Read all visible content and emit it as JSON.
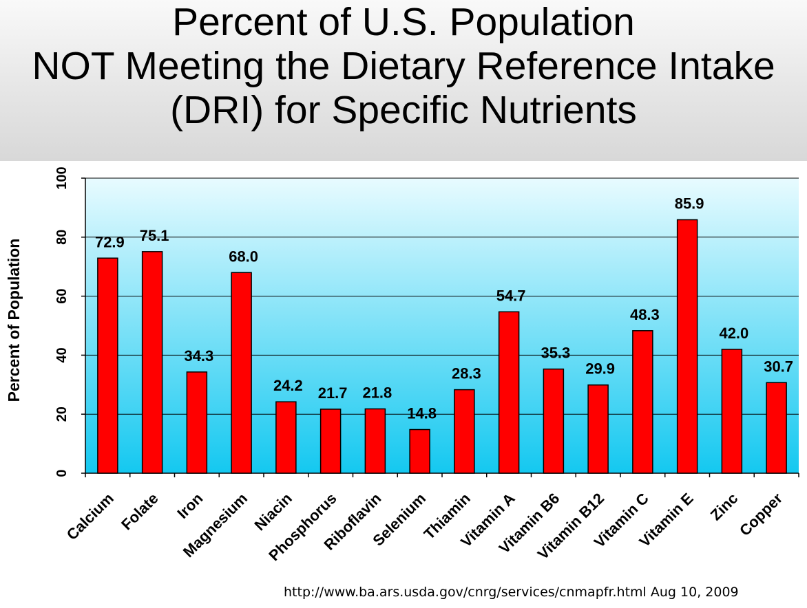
{
  "chart_data": {
    "type": "bar",
    "title": [
      "Percent of U.S. Population",
      "NOT Meeting the Dietary Reference Intake",
      "(DRI) for Specific Nutrients"
    ],
    "xlabel": "",
    "ylabel": "Percent of Population",
    "ylim": [
      0,
      100
    ],
    "yticks": [
      0,
      20,
      40,
      60,
      80,
      100
    ],
    "grid": true,
    "categories": [
      "Calcium",
      "Folate",
      "Iron",
      "Magnesium",
      "Niacin",
      "Phosphorus",
      "Riboflavin",
      "Selenium",
      "Thiamin",
      "Vitamin A",
      "Vitamin B6",
      "Vitamin B12",
      "Vitamin C",
      "Vitamin E",
      "Zinc",
      "Copper"
    ],
    "values": [
      72.9,
      75.1,
      34.3,
      68.0,
      24.2,
      21.7,
      21.8,
      14.8,
      28.3,
      54.7,
      35.3,
      29.9,
      48.3,
      85.9,
      42.0,
      30.7
    ],
    "value_labels": [
      "72.9",
      "75.1",
      "34.3",
      "68.0",
      "24.2",
      "21.7",
      "21.8",
      "14.8",
      "28.3",
      "54.7",
      "35.3",
      "29.9",
      "48.3",
      "85.9",
      "42.0",
      "30.7"
    ],
    "bar_color": "#ff0000",
    "bar_outline": "#000000",
    "plot_bg_top": "#e8fbff",
    "plot_bg_bottom": "#14c8f0"
  },
  "source": "http://www.ba.ars.usda.gov/cnrg/services/cnmapfr.html Aug 10, 2009"
}
